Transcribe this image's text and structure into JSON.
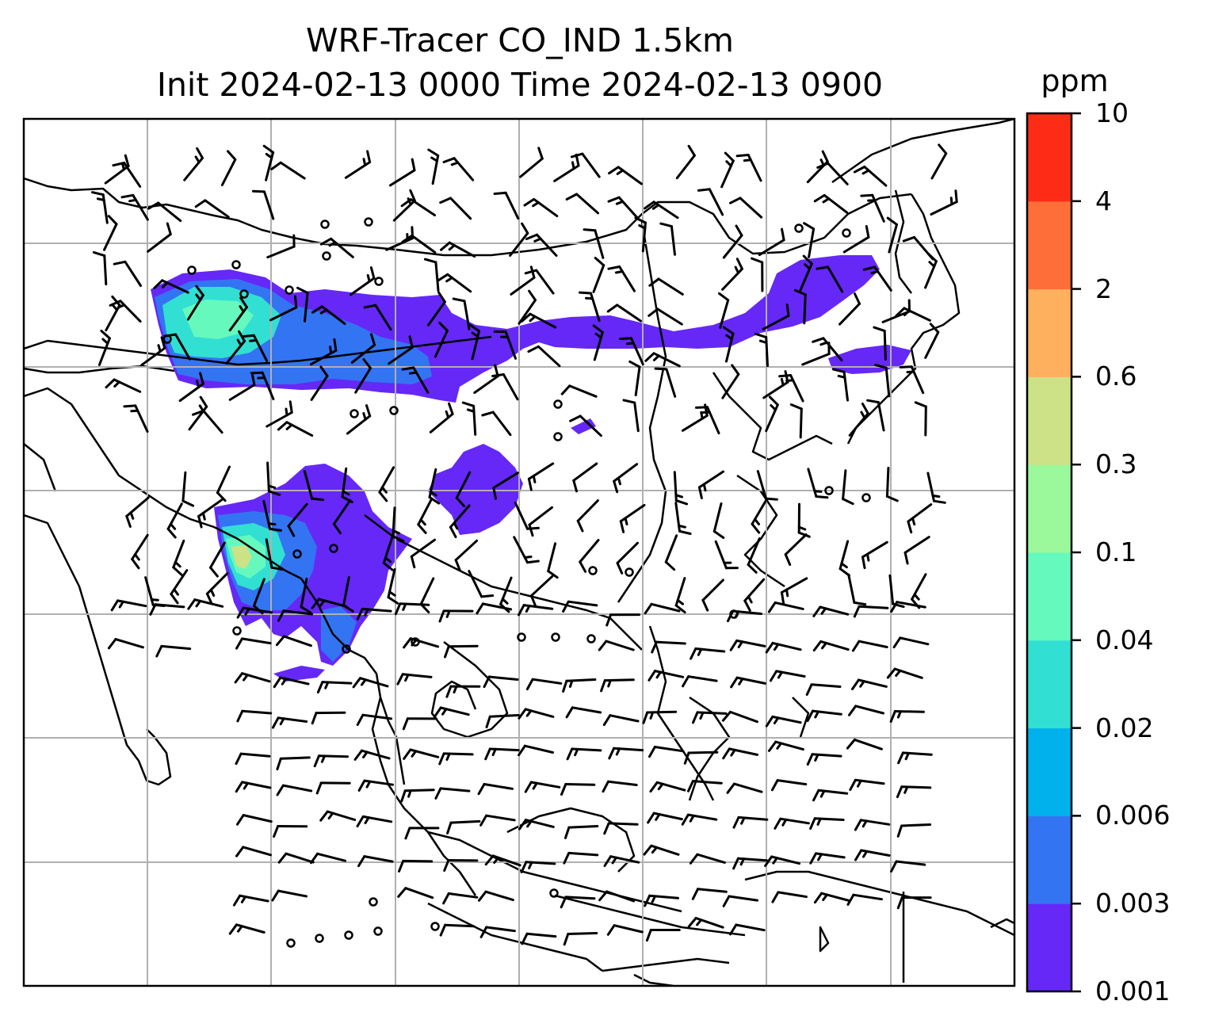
{
  "title": {
    "line1": "WRF-Tracer CO_IND 1.5km",
    "line2": "Init 2024-02-13 0000 Time 2024-02-13 0900"
  },
  "colorbar": {
    "unit": "ppm",
    "levels": [
      "0.001",
      "0.003",
      "0.006",
      "0.02",
      "0.04",
      "0.1",
      "0.3",
      "0.6",
      "2",
      "4",
      "10"
    ],
    "colors": [
      "#6528f7",
      "#3374f2",
      "#00b1ec",
      "#32dfd3",
      "#66f9be",
      "#9bf89b",
      "#cde187",
      "#feb05f",
      "#fe6e38",
      "#fe2c17"
    ]
  },
  "map": {
    "gridlines": true,
    "frame_color": "#000000",
    "grid_color": "#b0b0b0"
  },
  "plume_colors": {
    "low": "#6528f7",
    "mid": "#3374f2",
    "high_a": "#32dfd3",
    "high_b": "#66f9be",
    "peak": "#cde187"
  }
}
